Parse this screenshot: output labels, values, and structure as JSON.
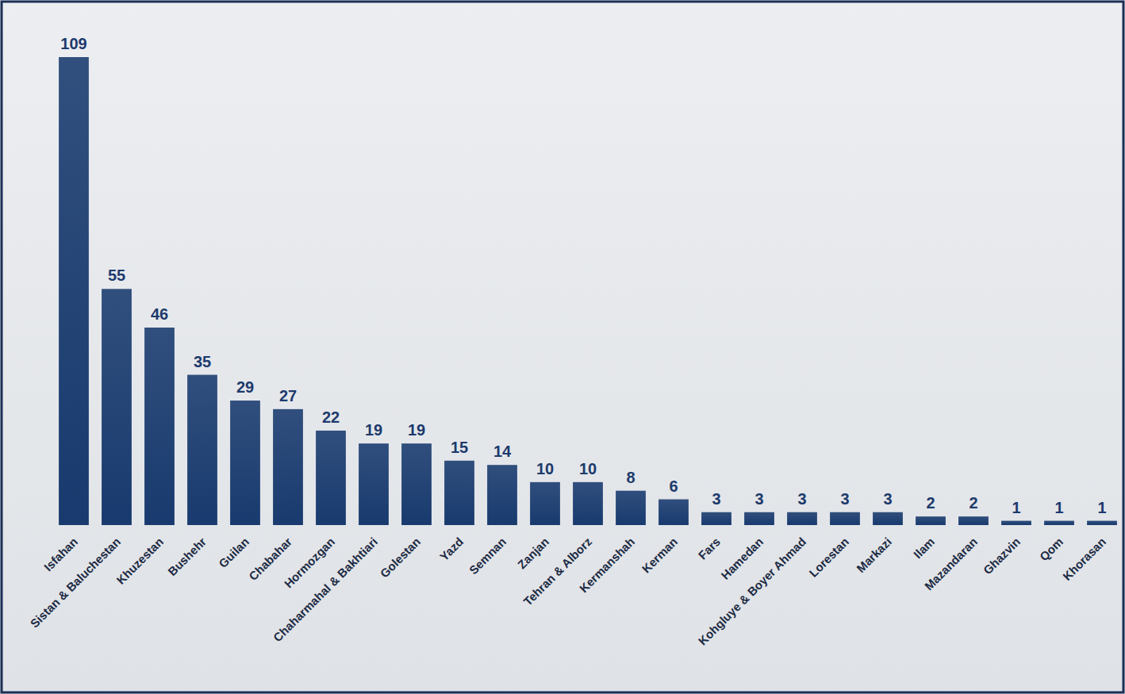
{
  "chart_data": {
    "type": "bar",
    "categories": [
      "Isfahan",
      "Sistan & Baluchestan",
      "Khuzestan",
      "Bushehr",
      "Guilan",
      "Chabahar",
      "Hormozgan",
      "Chaharmahal & Bakhtiari",
      "Golestan",
      "Yazd",
      "Semnan",
      "Zanjan",
      "Tehran & Alborz",
      "Kermanshah",
      "Kerman",
      "Fars",
      "Hamedan",
      "Kohgluye & Boyer Ahmad",
      "Lorestan",
      "Markazi",
      "Ilam",
      "Mazandaran",
      "Ghazvin",
      "Qom",
      "Khorasan"
    ],
    "values": [
      109,
      55,
      46,
      35,
      29,
      27,
      22,
      19,
      19,
      15,
      14,
      10,
      10,
      8,
      6,
      3,
      3,
      3,
      3,
      3,
      2,
      2,
      1,
      1,
      1
    ],
    "color": "#183a6e",
    "ylim": [
      0,
      110
    ],
    "data_labels": true,
    "tick_labels": "x",
    "grid": false
  }
}
